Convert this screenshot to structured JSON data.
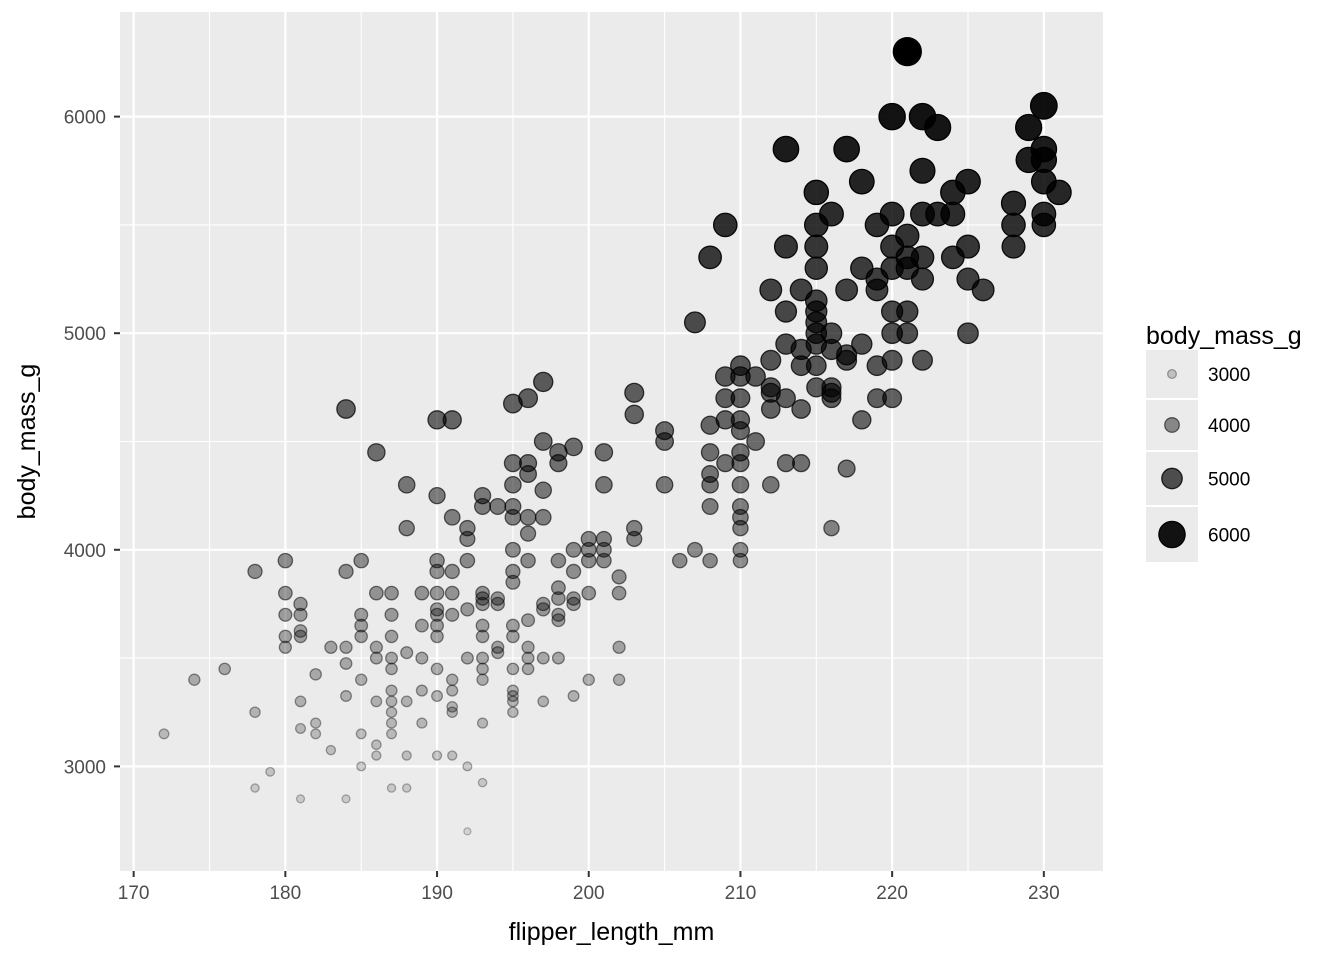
{
  "chart_data": {
    "type": "scatter",
    "title": "",
    "xlabel": "flipper_length_mm",
    "ylabel": "body_mass_g",
    "xlim": [
      169.1,
      233.9
    ],
    "ylim": [
      2517,
      6483
    ],
    "x_ticks": [
      170,
      180,
      190,
      200,
      210,
      220,
      230
    ],
    "x_tick_labels": [
      "170",
      "180",
      "190",
      "200",
      "210",
      "220",
      "230"
    ],
    "y_ticks": [
      3000,
      4000,
      5000,
      6000
    ],
    "y_tick_labels": [
      "3000",
      "4000",
      "5000",
      "6000"
    ],
    "grid": true,
    "background": "#ebebeb",
    "point_color": "#000000",
    "encoding": {
      "size": "body_mass_g",
      "alpha": "body_mass_g"
    },
    "legend": {
      "title": "body_mass_g",
      "placement": "right",
      "entries": [
        {
          "value": 3000,
          "label": "3000"
        },
        {
          "value": 4000,
          "label": "4000"
        },
        {
          "value": 5000,
          "label": "5000"
        },
        {
          "value": 6000,
          "label": "6000"
        }
      ]
    },
    "points": [
      [
        172,
        3150
      ],
      [
        174,
        3400
      ],
      [
        176,
        3450
      ],
      [
        178,
        3250
      ],
      [
        178,
        3900
      ],
      [
        178,
        2900
      ],
      [
        179,
        2975
      ],
      [
        180,
        3950
      ],
      [
        180,
        3800
      ],
      [
        180,
        3700
      ],
      [
        180,
        3600
      ],
      [
        180,
        3550
      ],
      [
        181,
        3750
      ],
      [
        181,
        3700
      ],
      [
        181,
        3625
      ],
      [
        181,
        3600
      ],
      [
        181,
        3300
      ],
      [
        181,
        3175
      ],
      [
        181,
        2850
      ],
      [
        182,
        3425
      ],
      [
        182,
        3200
      ],
      [
        182,
        3150
      ],
      [
        183,
        3550
      ],
      [
        183,
        3075
      ],
      [
        184,
        4650
      ],
      [
        184,
        3900
      ],
      [
        184,
        3550
      ],
      [
        184,
        3475
      ],
      [
        184,
        3325
      ],
      [
        184,
        2850
      ],
      [
        185,
        3950
      ],
      [
        185,
        3700
      ],
      [
        185,
        3650
      ],
      [
        185,
        3600
      ],
      [
        185,
        3400
      ],
      [
        185,
        3150
      ],
      [
        185,
        3000
      ],
      [
        186,
        4450
      ],
      [
        186,
        3800
      ],
      [
        186,
        3550
      ],
      [
        186,
        3500
      ],
      [
        186,
        3300
      ],
      [
        186,
        3100
      ],
      [
        186,
        3050
      ],
      [
        187,
        3800
      ],
      [
        187,
        3700
      ],
      [
        187,
        3600
      ],
      [
        187,
        3500
      ],
      [
        187,
        3450
      ],
      [
        187,
        3350
      ],
      [
        187,
        3300
      ],
      [
        187,
        3250
      ],
      [
        187,
        3200
      ],
      [
        187,
        3150
      ],
      [
        187,
        2900
      ],
      [
        188,
        4300
      ],
      [
        188,
        4100
      ],
      [
        188,
        3525
      ],
      [
        188,
        3300
      ],
      [
        188,
        3050
      ],
      [
        188,
        2900
      ],
      [
        189,
        3800
      ],
      [
        189,
        3650
      ],
      [
        189,
        3500
      ],
      [
        189,
        3350
      ],
      [
        189,
        3200
      ],
      [
        190,
        4600
      ],
      [
        190,
        4250
      ],
      [
        190,
        3950
      ],
      [
        190,
        3900
      ],
      [
        190,
        3800
      ],
      [
        190,
        3725
      ],
      [
        190,
        3700
      ],
      [
        190,
        3650
      ],
      [
        190,
        3600
      ],
      [
        190,
        3450
      ],
      [
        190,
        3325
      ],
      [
        190,
        3050
      ],
      [
        191,
        4600
      ],
      [
        191,
        4150
      ],
      [
        191,
        3900
      ],
      [
        191,
        3800
      ],
      [
        191,
        3700
      ],
      [
        191,
        3400
      ],
      [
        191,
        3350
      ],
      [
        191,
        3275
      ],
      [
        191,
        3250
      ],
      [
        191,
        3050
      ],
      [
        192,
        4100
      ],
      [
        192,
        4050
      ],
      [
        192,
        3950
      ],
      [
        192,
        3725
      ],
      [
        192,
        3500
      ],
      [
        192,
        3000
      ],
      [
        192,
        2700
      ],
      [
        193,
        4250
      ],
      [
        193,
        4200
      ],
      [
        193,
        3800
      ],
      [
        193,
        3775
      ],
      [
        193,
        3750
      ],
      [
        193,
        3650
      ],
      [
        193,
        3600
      ],
      [
        193,
        3500
      ],
      [
        193,
        3450
      ],
      [
        193,
        3400
      ],
      [
        193,
        3200
      ],
      [
        193,
        2925
      ],
      [
        194,
        4200
      ],
      [
        194,
        3775
      ],
      [
        194,
        3750
      ],
      [
        194,
        3550
      ],
      [
        194,
        3525
      ],
      [
        195,
        4675
      ],
      [
        195,
        4400
      ],
      [
        195,
        4300
      ],
      [
        195,
        4200
      ],
      [
        195,
        4150
      ],
      [
        195,
        4000
      ],
      [
        195,
        3900
      ],
      [
        195,
        3850
      ],
      [
        195,
        3650
      ],
      [
        195,
        3600
      ],
      [
        195,
        3450
      ],
      [
        195,
        3350
      ],
      [
        195,
        3325
      ],
      [
        195,
        3300
      ],
      [
        195,
        3250
      ],
      [
        196,
        4700
      ],
      [
        196,
        4400
      ],
      [
        196,
        4350
      ],
      [
        196,
        4150
      ],
      [
        196,
        4075
      ],
      [
        196,
        3950
      ],
      [
        196,
        3675
      ],
      [
        196,
        3550
      ],
      [
        196,
        3500
      ],
      [
        196,
        3450
      ],
      [
        197,
        4775
      ],
      [
        197,
        4500
      ],
      [
        197,
        4275
      ],
      [
        197,
        4150
      ],
      [
        197,
        3750
      ],
      [
        197,
        3725
      ],
      [
        197,
        3500
      ],
      [
        197,
        3300
      ],
      [
        198,
        4400
      ],
      [
        198,
        4450
      ],
      [
        198,
        3950
      ],
      [
        198,
        3825
      ],
      [
        198,
        3775
      ],
      [
        198,
        3700
      ],
      [
        198,
        3675
      ],
      [
        198,
        3500
      ],
      [
        199,
        4475
      ],
      [
        199,
        4000
      ],
      [
        199,
        3900
      ],
      [
        199,
        3775
      ],
      [
        199,
        3750
      ],
      [
        199,
        3325
      ],
      [
        200,
        4050
      ],
      [
        200,
        4000
      ],
      [
        200,
        3950
      ],
      [
        200,
        3800
      ],
      [
        200,
        3400
      ],
      [
        201,
        4450
      ],
      [
        201,
        4300
      ],
      [
        201,
        4050
      ],
      [
        201,
        4000
      ],
      [
        201,
        3950
      ],
      [
        202,
        3875
      ],
      [
        202,
        3800
      ],
      [
        202,
        3550
      ],
      [
        202,
        3400
      ],
      [
        203,
        4725
      ],
      [
        203,
        4625
      ],
      [
        203,
        4100
      ],
      [
        203,
        4050
      ],
      [
        205,
        4550
      ],
      [
        205,
        4500
      ],
      [
        205,
        4300
      ],
      [
        206,
        3950
      ],
      [
        207,
        5050
      ],
      [
        207,
        4000
      ],
      [
        208,
        5350
      ],
      [
        208,
        4575
      ],
      [
        208,
        4450
      ],
      [
        208,
        4350
      ],
      [
        208,
        4300
      ],
      [
        208,
        4200
      ],
      [
        208,
        3950
      ],
      [
        209,
        5500
      ],
      [
        209,
        4800
      ],
      [
        209,
        4700
      ],
      [
        209,
        4600
      ],
      [
        209,
        4400
      ],
      [
        210,
        4850
      ],
      [
        210,
        4800
      ],
      [
        210,
        4700
      ],
      [
        210,
        4600
      ],
      [
        210,
        4550
      ],
      [
        210,
        4450
      ],
      [
        210,
        4400
      ],
      [
        210,
        4300
      ],
      [
        210,
        4200
      ],
      [
        210,
        4150
      ],
      [
        210,
        4100
      ],
      [
        210,
        4000
      ],
      [
        210,
        3950
      ],
      [
        211,
        4800
      ],
      [
        211,
        4500
      ],
      [
        212,
        5200
      ],
      [
        212,
        4875
      ],
      [
        212,
        4750
      ],
      [
        212,
        4725
      ],
      [
        212,
        4650
      ],
      [
        212,
        4300
      ],
      [
        213,
        5850
      ],
      [
        213,
        5400
      ],
      [
        213,
        5100
      ],
      [
        213,
        4950
      ],
      [
        213,
        4700
      ],
      [
        213,
        4400
      ],
      [
        214,
        5200
      ],
      [
        214,
        4925
      ],
      [
        214,
        4850
      ],
      [
        214,
        4650
      ],
      [
        214,
        4400
      ],
      [
        215,
        5650
      ],
      [
        215,
        5500
      ],
      [
        215,
        5400
      ],
      [
        215,
        5300
      ],
      [
        215,
        5150
      ],
      [
        215,
        5100
      ],
      [
        215,
        5050
      ],
      [
        215,
        5000
      ],
      [
        215,
        4950
      ],
      [
        215,
        4850
      ],
      [
        215,
        4750
      ],
      [
        216,
        5550
      ],
      [
        216,
        5000
      ],
      [
        216,
        4925
      ],
      [
        216,
        4750
      ],
      [
        216,
        4725
      ],
      [
        216,
        4700
      ],
      [
        216,
        4100
      ],
      [
        217,
        5850
      ],
      [
        217,
        5200
      ],
      [
        217,
        4900
      ],
      [
        217,
        4875
      ],
      [
        217,
        4375
      ],
      [
        218,
        5700
      ],
      [
        218,
        5300
      ],
      [
        218,
        4950
      ],
      [
        218,
        4600
      ],
      [
        219,
        5500
      ],
      [
        219,
        5250
      ],
      [
        219,
        5200
      ],
      [
        219,
        4850
      ],
      [
        219,
        4700
      ],
      [
        220,
        6000
      ],
      [
        220,
        5550
      ],
      [
        220,
        5400
      ],
      [
        220,
        5300
      ],
      [
        220,
        5100
      ],
      [
        220,
        5000
      ],
      [
        220,
        4875
      ],
      [
        220,
        4700
      ],
      [
        221,
        6300
      ],
      [
        221,
        5450
      ],
      [
        221,
        5350
      ],
      [
        221,
        5300
      ],
      [
        221,
        5100
      ],
      [
        221,
        5000
      ],
      [
        222,
        6000
      ],
      [
        222,
        5750
      ],
      [
        222,
        5550
      ],
      [
        222,
        5350
      ],
      [
        222,
        5250
      ],
      [
        222,
        4875
      ],
      [
        223,
        5950
      ],
      [
        223,
        5550
      ],
      [
        224,
        5650
      ],
      [
        224,
        5550
      ],
      [
        224,
        5350
      ],
      [
        225,
        5700
      ],
      [
        225,
        5400
      ],
      [
        225,
        5250
      ],
      [
        225,
        5000
      ],
      [
        226,
        5200
      ],
      [
        228,
        5600
      ],
      [
        228,
        5500
      ],
      [
        228,
        5400
      ],
      [
        229,
        5950
      ],
      [
        229,
        5800
      ],
      [
        230,
        6050
      ],
      [
        230,
        5850
      ],
      [
        230,
        5800
      ],
      [
        230,
        5700
      ],
      [
        230,
        5550
      ],
      [
        230,
        5500
      ],
      [
        231,
        5650
      ]
    ]
  }
}
